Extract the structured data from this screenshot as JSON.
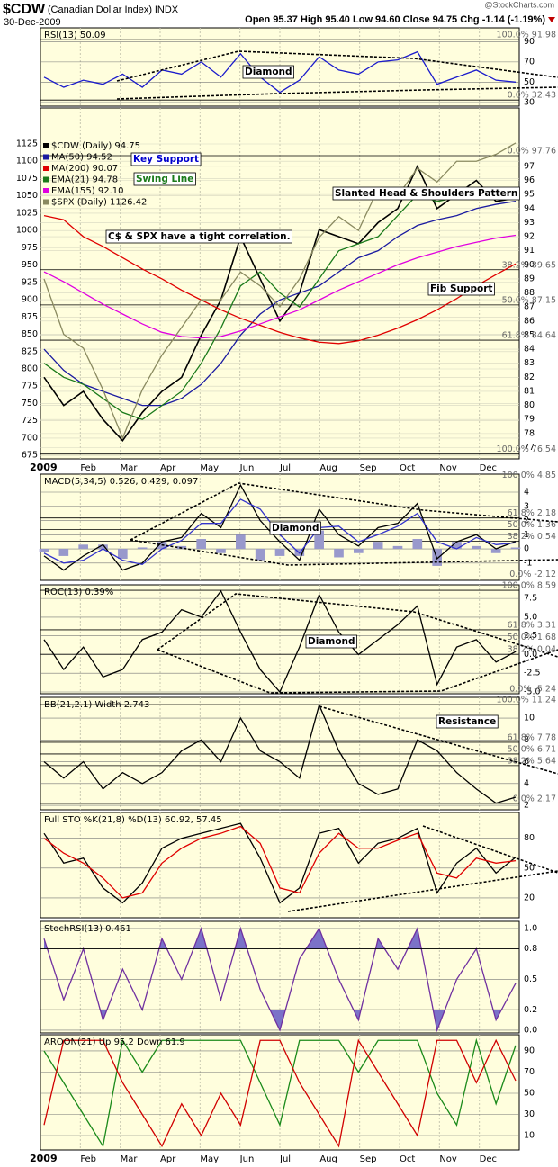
{
  "header": {
    "symbol": "$CDW",
    "name": "(Canadian Dollar Index)",
    "exchange": "INDX",
    "date": "30-Dec-2009",
    "quote": [
      "Open 95.37",
      "High 95.40",
      "Low 94.60",
      "Close 94.75",
      "Chg -1.14 (-1.19%)"
    ],
    "source": "@StockCharts.com"
  },
  "months": [
    "2009",
    "Feb",
    "Mar",
    "Apr",
    "May",
    "Jun",
    "Jul",
    "Aug",
    "Sep",
    "Oct",
    "Nov",
    "Dec"
  ],
  "chart_data": [
    {
      "type": "line",
      "title": "RSI(13) 50.09",
      "ylim": [
        26.4,
        103.6
      ],
      "yticks": [
        30,
        50,
        70,
        90
      ],
      "series": [
        {
          "color": "#1a1acc",
          "values": [
            55,
            45,
            52,
            48,
            58,
            45,
            62,
            58,
            70,
            55,
            78,
            55,
            40,
            52,
            75,
            62,
            58,
            70,
            72,
            80,
            48,
            55,
            62,
            52,
            50.09
          ]
        }
      ],
      "fib_levels": [
        {
          "value": 91.98,
          "label": "100.0% 91.98"
        },
        {
          "value": 32.43,
          "label": "0.0% 32.43"
        }
      ],
      "annotations": [
        {
          "text": "Diamond",
          "color": "#000000"
        }
      ]
    },
    {
      "type": "price",
      "ylim": [
        670,
        1177
      ],
      "yticks": [
        675,
        700,
        725,
        750,
        775,
        800,
        825,
        850,
        875,
        900,
        925,
        950,
        975,
        1000,
        1025,
        1050,
        1075,
        1100,
        1125
      ],
      "y2lim": [
        76.2,
        101.15
      ],
      "y2ticks": [
        77,
        78,
        79,
        80,
        81,
        82,
        83,
        84,
        85,
        86,
        87,
        88,
        89,
        90,
        91,
        92,
        93,
        94,
        95,
        96,
        97
      ],
      "series": [
        {
          "name": "$CDW (Daily) 94.75",
          "color": "#000000",
          "axis": "y2",
          "values": [
            82,
            80,
            81,
            79,
            77.5,
            79.5,
            81,
            82,
            85,
            87.5,
            92,
            89,
            86,
            88,
            92.5,
            92,
            91.5,
            93,
            94,
            97,
            94,
            95,
            96,
            94.5,
            94.75
          ]
        },
        {
          "name": "MA(50) 94.52",
          "color": "#1a1aa0",
          "axis": "y2",
          "values": [
            84,
            82.5,
            81.5,
            81,
            80.5,
            80,
            80,
            80.5,
            81.5,
            83,
            85,
            86.5,
            87.5,
            88,
            88.5,
            89.5,
            90.5,
            91,
            92,
            92.8,
            93.2,
            93.5,
            94,
            94.3,
            94.52
          ]
        },
        {
          "name": "MA(200) 90.07",
          "color": "#e00000",
          "axis": "y2",
          "values": [
            93.5,
            93.2,
            92,
            91.3,
            90.5,
            89.7,
            89,
            88.2,
            87.5,
            86.8,
            86.2,
            85.7,
            85.2,
            84.8,
            84.5,
            84.4,
            84.6,
            85,
            85.5,
            86.1,
            86.8,
            87.6,
            88.5,
            89.3,
            90.07
          ]
        },
        {
          "name": "EMA(21) 94.78",
          "color": "#1a7a1a",
          "axis": "y2",
          "values": [
            83,
            82,
            81.5,
            80.5,
            79.5,
            79,
            80,
            81,
            83,
            85.5,
            88.5,
            89.5,
            88,
            87,
            89,
            91,
            91.5,
            92,
            93.5,
            95,
            94.5,
            94.8,
            95.2,
            94.8,
            94.78
          ]
        },
        {
          "name": "EMA(155) 92.10",
          "color": "#e000e0",
          "axis": "y2",
          "values": [
            89.5,
            88.8,
            88,
            87.2,
            86.5,
            85.8,
            85.2,
            84.9,
            84.8,
            84.9,
            85.3,
            85.8,
            86.3,
            86.8,
            87.5,
            88.2,
            88.8,
            89.4,
            90,
            90.5,
            90.9,
            91.3,
            91.6,
            91.9,
            92.1
          ]
        },
        {
          "name": "$SPX (Daily) 1126.42",
          "color": "#8a8a60",
          "axis": "y",
          "values": [
            930,
            850,
            830,
            770,
            700,
            770,
            820,
            860,
            900,
            900,
            940,
            920,
            890,
            930,
            990,
            1020,
            1000,
            1060,
            1050,
            1090,
            1070,
            1100,
            1100,
            1110,
            1126.42
          ]
        }
      ],
      "fib_levels": [
        {
          "value": 97.76,
          "label": "0.0% 97.76"
        },
        {
          "value": 89.65,
          "label": "38.2% 89.65"
        },
        {
          "value": 87.15,
          "label": "50.0% 87.15"
        },
        {
          "value": 84.64,
          "label": "61.8% 84.64"
        },
        {
          "value": 76.54,
          "label": "100.0% 76.54"
        }
      ],
      "annotations": [
        {
          "text": "Key Support",
          "color": "#0000cc"
        },
        {
          "text": "Swing Line",
          "color": "#1a7a1a"
        },
        {
          "text": "C$ & SPX have a tight correlation.",
          "color": "#000000"
        },
        {
          "text": "Slanted Head & Shoulders Pattern",
          "color": "#000000"
        },
        {
          "text": "Fib Support",
          "color": "#000000"
        }
      ]
    },
    {
      "type": "line",
      "title": "MACD(5,34,5) 0.526, 0.429, 0.097",
      "ylim": [
        -2.22,
        5.27
      ],
      "yticks": [
        -1,
        0,
        1,
        2,
        3,
        4
      ],
      "series": [
        {
          "color": "#9999cc",
          "style": "histogram",
          "values": [
            -0.2,
            -0.5,
            0.3,
            0.3,
            -0.7,
            0.1,
            0.5,
            0.2,
            0.7,
            -0.3,
            1,
            -0.8,
            -0.5,
            -0.5,
            1.3,
            -0.6,
            -0.3,
            0.5,
            0.2,
            0.7,
            -1.2,
            0.5,
            0.2,
            -0.3,
            0.097
          ]
        },
        {
          "color": "#000000",
          "values": [
            -0.5,
            -1.5,
            -0.5,
            0.3,
            -1.5,
            -1,
            0.5,
            0.8,
            2.5,
            1.5,
            4.5,
            2,
            0.5,
            -0.8,
            2.8,
            1,
            0.2,
            1.5,
            1.8,
            3.2,
            -0.7,
            0.5,
            1,
            0,
            0.526
          ]
        },
        {
          "color": "#3333cc",
          "values": [
            -0.3,
            -1,
            -0.8,
            0,
            -0.8,
            -1.1,
            0,
            0.6,
            1.8,
            1.8,
            3.5,
            2.8,
            1,
            -0.3,
            1.5,
            1.6,
            0.5,
            1,
            1.6,
            2.5,
            0.5,
            0,
            0.8,
            0.3,
            0.429
          ]
        }
      ],
      "fib_levels": [
        {
          "value": 4.85,
          "label": "100.0% 4.85"
        },
        {
          "value": 2.18,
          "label": "61.8% 2.18"
        },
        {
          "value": 1.36,
          "label": "50.0% 1.36"
        },
        {
          "value": 0.54,
          "label": "38.2% 0.54"
        },
        {
          "value": -2.12,
          "label": "0.0% -2.12"
        }
      ],
      "annotations": [
        {
          "text": "Diamond",
          "color": "#000000"
        }
      ]
    },
    {
      "type": "line",
      "title": "ROC(13) 0.39%",
      "ylim": [
        -5.24,
        9.32
      ],
      "yticks": [
        {
          "value": -5,
          "label": "-5.0"
        },
        -2.5,
        {
          "value": 0,
          "label": "0.0"
        },
        2.5,
        {
          "value": 5,
          "label": "5.0"
        },
        7.5
      ],
      "series": [
        {
          "color": "#000000",
          "values": [
            2,
            -2,
            1,
            -3,
            -2,
            2,
            3,
            6,
            5,
            8.5,
            3,
            -2,
            -5,
            1,
            8,
            3,
            0,
            2,
            4,
            6.5,
            -4,
            1,
            2,
            -1,
            0.39
          ]
        }
      ],
      "fib_levels": [
        {
          "value": 8.59,
          "label": "100.0% 8.59"
        },
        {
          "value": 3.31,
          "label": "61.8% 3.31"
        },
        {
          "value": 1.68,
          "label": "50.0% 1.68"
        },
        {
          "value": 0.04,
          "label": "38.2% 0.04"
        },
        {
          "value": -5.24,
          "label": "0.0% -5.24"
        }
      ],
      "annotations": [
        {
          "text": "Diamond",
          "color": "#000000"
        }
      ]
    },
    {
      "type": "line",
      "title": "BB(21,2.1) Width 2.743",
      "ylim": [
        1.59,
        11.9
      ],
      "yticks": [
        2,
        4,
        6,
        8,
        10
      ],
      "series": [
        {
          "color": "#000000",
          "values": [
            6,
            4.5,
            6,
            3.5,
            5,
            4,
            5,
            7,
            8,
            6,
            10,
            7,
            6,
            4.5,
            11.2,
            7,
            4,
            3,
            3.5,
            8,
            7,
            5,
            3.5,
            2.2,
            2.743
          ]
        }
      ],
      "fib_levels": [
        {
          "value": 11.24,
          "label": "100.0% 11.24"
        },
        {
          "value": 7.78,
          "label": "61.8% 7.78"
        },
        {
          "value": 6.71,
          "label": "50.0% 6.71"
        },
        {
          "value": 5.64,
          "label": "38.2% 5.64"
        },
        {
          "value": 2.17,
          "label": "0.0% 2.17"
        }
      ],
      "annotations": [
        {
          "text": "Resistance",
          "color": "#000000"
        }
      ]
    },
    {
      "type": "line",
      "title": "Full STO %K(21,8) %D(13) 60.92, 57.45",
      "ylim": [
        0,
        106
      ],
      "yticks": [
        20,
        50,
        80
      ],
      "series": [
        {
          "color": "#000000",
          "values": [
            85,
            55,
            60,
            30,
            15,
            35,
            70,
            80,
            85,
            90,
            95,
            60,
            15,
            30,
            85,
            90,
            55,
            75,
            80,
            90,
            25,
            55,
            70,
            45,
            60.92
          ]
        },
        {
          "color": "#e00000",
          "values": [
            80,
            65,
            55,
            40,
            20,
            25,
            55,
            70,
            80,
            85,
            92,
            75,
            30,
            25,
            65,
            85,
            70,
            70,
            78,
            85,
            45,
            40,
            60,
            55,
            57.45
          ]
        }
      ]
    },
    {
      "type": "line",
      "title": "StochRSI(13) 0.461",
      "ylim": [
        -0.027,
        1.07
      ],
      "yticks": [
        {
          "value": 0,
          "label": "0.0"
        },
        0.2,
        0.5,
        0.8,
        {
          "value": 1,
          "label": "1.0"
        }
      ],
      "overbought": 0.8,
      "oversold": 0.2,
      "series": [
        {
          "color": "#7030a0",
          "values": [
            0.9,
            0.3,
            0.8,
            0.1,
            0.6,
            0.2,
            0.9,
            0.5,
            1.0,
            0.3,
            1.0,
            0.4,
            0.0,
            0.7,
            1.0,
            0.5,
            0.1,
            0.9,
            0.6,
            1.0,
            0.0,
            0.5,
            0.8,
            0.1,
            0.461
          ]
        }
      ]
    },
    {
      "type": "line",
      "title": "AROON(21) Up 95.2 Down 61.9",
      "ylim": [
        -3.6,
        105.3
      ],
      "yticks": [
        10,
        30,
        50,
        70,
        90
      ],
      "series": [
        {
          "color": "#1a8a1a",
          "values": [
            90,
            60,
            30,
            0,
            100,
            70,
            100,
            100,
            100,
            100,
            100,
            60,
            20,
            100,
            100,
            100,
            70,
            100,
            100,
            100,
            50,
            20,
            100,
            40,
            95.2
          ]
        },
        {
          "color": "#d00000",
          "values": [
            20,
            100,
            100,
            100,
            60,
            30,
            0,
            40,
            10,
            50,
            20,
            100,
            100,
            60,
            30,
            0,
            100,
            70,
            40,
            10,
            100,
            100,
            60,
            100,
            61.9
          ]
        }
      ]
    }
  ]
}
